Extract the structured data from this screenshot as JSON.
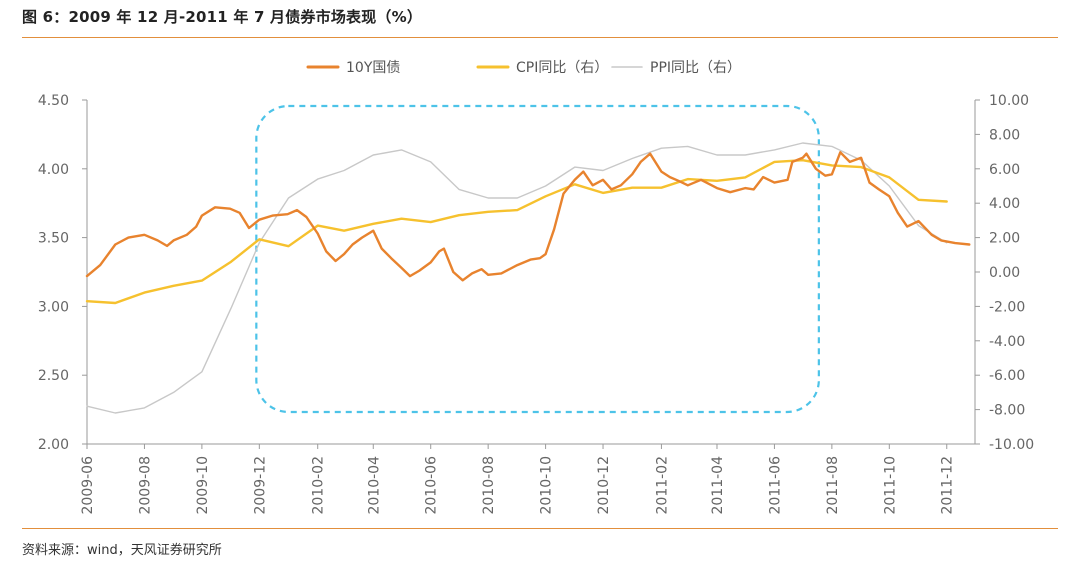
{
  "header": {
    "title": "图 6：2009 年 12 月-2011 年 7 月债券市场表现（%）"
  },
  "footer": {
    "source": "资料来源：wind，天风证券研究所"
  },
  "chart_data": {
    "type": "line",
    "title": "",
    "legend_position": "top-center",
    "grid": false,
    "x_ticks": [
      "2009-06",
      "2009-08",
      "2009-10",
      "2009-12",
      "2010-02",
      "2010-04",
      "2010-06",
      "2010-08",
      "2010-10",
      "2010-12",
      "2011-02",
      "2011-04",
      "2011-06",
      "2011-08",
      "2011-10",
      "2011-12"
    ],
    "x_range": [
      "2009-06-01",
      "2011-12-31"
    ],
    "left_axis": {
      "ylim": [
        2.0,
        4.5
      ],
      "ticks": [
        "2.00",
        "2.50",
        "3.00",
        "3.50",
        "4.00",
        "4.50"
      ]
    },
    "right_axis": {
      "ylim": [
        -10.0,
        10.0
      ],
      "ticks": [
        "-10.00",
        "-8.00",
        "-6.00",
        "-4.00",
        "-2.00",
        "0.00",
        "2.00",
        "4.00",
        "6.00",
        "8.00",
        "10.00"
      ]
    },
    "series": [
      {
        "name": "10Y国债",
        "axis": "left",
        "color": "#e8832e",
        "points": [
          [
            "2009-06-01",
            3.22
          ],
          [
            "2009-06-15",
            3.3
          ],
          [
            "2009-07-01",
            3.45
          ],
          [
            "2009-07-15",
            3.5
          ],
          [
            "2009-08-01",
            3.52
          ],
          [
            "2009-08-15",
            3.48
          ],
          [
            "2009-08-25",
            3.44
          ],
          [
            "2009-09-01",
            3.48
          ],
          [
            "2009-09-15",
            3.52
          ],
          [
            "2009-09-25",
            3.58
          ],
          [
            "2009-10-01",
            3.66
          ],
          [
            "2009-10-15",
            3.72
          ],
          [
            "2009-10-31",
            3.71
          ],
          [
            "2009-11-10",
            3.68
          ],
          [
            "2009-11-20",
            3.57
          ],
          [
            "2009-12-01",
            3.63
          ],
          [
            "2009-12-15",
            3.66
          ],
          [
            "2009-12-31",
            3.67
          ],
          [
            "2010-01-10",
            3.7
          ],
          [
            "2010-01-20",
            3.65
          ],
          [
            "2010-02-01",
            3.53
          ],
          [
            "2010-02-10",
            3.4
          ],
          [
            "2010-02-20",
            3.33
          ],
          [
            "2010-03-01",
            3.38
          ],
          [
            "2010-03-10",
            3.45
          ],
          [
            "2010-03-20",
            3.5
          ],
          [
            "2010-04-01",
            3.55
          ],
          [
            "2010-04-10",
            3.42
          ],
          [
            "2010-04-20",
            3.35
          ],
          [
            "2010-05-01",
            3.28
          ],
          [
            "2010-05-10",
            3.22
          ],
          [
            "2010-05-20",
            3.26
          ],
          [
            "2010-06-01",
            3.32
          ],
          [
            "2010-06-10",
            3.4
          ],
          [
            "2010-06-15",
            3.42
          ],
          [
            "2010-06-25",
            3.25
          ],
          [
            "2010-07-05",
            3.19
          ],
          [
            "2010-07-15",
            3.24
          ],
          [
            "2010-07-25",
            3.27
          ],
          [
            "2010-08-01",
            3.23
          ],
          [
            "2010-08-15",
            3.24
          ],
          [
            "2010-09-01",
            3.3
          ],
          [
            "2010-09-15",
            3.34
          ],
          [
            "2010-09-25",
            3.35
          ],
          [
            "2010-10-01",
            3.38
          ],
          [
            "2010-10-10",
            3.56
          ],
          [
            "2010-10-20",
            3.82
          ],
          [
            "2010-11-01",
            3.92
          ],
          [
            "2010-11-10",
            3.98
          ],
          [
            "2010-11-20",
            3.88
          ],
          [
            "2010-12-01",
            3.92
          ],
          [
            "2010-12-10",
            3.85
          ],
          [
            "2010-12-20",
            3.88
          ],
          [
            "2011-01-01",
            3.96
          ],
          [
            "2011-01-10",
            4.05
          ],
          [
            "2011-01-20",
            4.11
          ],
          [
            "2011-02-01",
            3.98
          ],
          [
            "2011-02-10",
            3.94
          ],
          [
            "2011-02-20",
            3.91
          ],
          [
            "2011-03-01",
            3.88
          ],
          [
            "2011-03-15",
            3.92
          ],
          [
            "2011-04-01",
            3.86
          ],
          [
            "2011-04-15",
            3.83
          ],
          [
            "2011-05-01",
            3.86
          ],
          [
            "2011-05-10",
            3.85
          ],
          [
            "2011-05-20",
            3.94
          ],
          [
            "2011-06-01",
            3.9
          ],
          [
            "2011-06-15",
            3.92
          ],
          [
            "2011-06-20",
            4.05
          ],
          [
            "2011-07-01",
            4.08
          ],
          [
            "2011-07-05",
            4.11
          ],
          [
            "2011-07-15",
            4.0
          ],
          [
            "2011-07-25",
            3.95
          ],
          [
            "2011-08-01",
            3.96
          ],
          [
            "2011-08-10",
            4.12
          ],
          [
            "2011-08-20",
            4.05
          ],
          [
            "2011-09-01",
            4.08
          ],
          [
            "2011-09-10",
            3.9
          ],
          [
            "2011-09-20",
            3.85
          ],
          [
            "2011-10-01",
            3.8
          ],
          [
            "2011-10-10",
            3.68
          ],
          [
            "2011-10-20",
            3.58
          ],
          [
            "2011-11-01",
            3.62
          ],
          [
            "2011-11-15",
            3.52
          ],
          [
            "2011-11-25",
            3.48
          ],
          [
            "2011-12-10",
            3.46
          ],
          [
            "2011-12-25",
            3.45
          ]
        ]
      },
      {
        "name": "CPI同比（右）",
        "axis": "right",
        "color": "#f6c12e",
        "points": [
          [
            "2009-06-01",
            -1.7
          ],
          [
            "2009-07-01",
            -1.8
          ],
          [
            "2009-08-01",
            -1.2
          ],
          [
            "2009-09-01",
            -0.8
          ],
          [
            "2009-10-01",
            -0.5
          ],
          [
            "2009-11-01",
            0.6
          ],
          [
            "2009-12-01",
            1.9
          ],
          [
            "2010-01-01",
            1.5
          ],
          [
            "2010-02-01",
            2.7
          ],
          [
            "2010-03-01",
            2.4
          ],
          [
            "2010-04-01",
            2.8
          ],
          [
            "2010-05-01",
            3.1
          ],
          [
            "2010-06-01",
            2.9
          ],
          [
            "2010-07-01",
            3.3
          ],
          [
            "2010-08-01",
            3.5
          ],
          [
            "2010-09-01",
            3.6
          ],
          [
            "2010-10-01",
            4.4
          ],
          [
            "2010-11-01",
            5.1
          ],
          [
            "2010-12-01",
            4.6
          ],
          [
            "2011-01-01",
            4.9
          ],
          [
            "2011-02-01",
            4.9
          ],
          [
            "2011-03-01",
            5.4
          ],
          [
            "2011-04-01",
            5.3
          ],
          [
            "2011-05-01",
            5.5
          ],
          [
            "2011-06-01",
            6.4
          ],
          [
            "2011-07-01",
            6.5
          ],
          [
            "2011-08-01",
            6.2
          ],
          [
            "2011-09-01",
            6.1
          ],
          [
            "2011-10-01",
            5.5
          ],
          [
            "2011-11-01",
            4.2
          ],
          [
            "2011-12-01",
            4.1
          ]
        ]
      },
      {
        "name": "PPI同比（右）",
        "axis": "right",
        "color": "#c8c8c8",
        "points": [
          [
            "2009-06-01",
            -7.8
          ],
          [
            "2009-07-01",
            -8.2
          ],
          [
            "2009-08-01",
            -7.9
          ],
          [
            "2009-09-01",
            -7.0
          ],
          [
            "2009-10-01",
            -5.8
          ],
          [
            "2009-11-01",
            -2.1
          ],
          [
            "2009-12-01",
            1.7
          ],
          [
            "2010-01-01",
            4.3
          ],
          [
            "2010-02-01",
            5.4
          ],
          [
            "2010-03-01",
            5.9
          ],
          [
            "2010-04-01",
            6.8
          ],
          [
            "2010-05-01",
            7.1
          ],
          [
            "2010-06-01",
            6.4
          ],
          [
            "2010-07-01",
            4.8
          ],
          [
            "2010-08-01",
            4.3
          ],
          [
            "2010-09-01",
            4.3
          ],
          [
            "2010-10-01",
            5.0
          ],
          [
            "2010-11-01",
            6.1
          ],
          [
            "2010-12-01",
            5.9
          ],
          [
            "2011-01-01",
            6.6
          ],
          [
            "2011-02-01",
            7.2
          ],
          [
            "2011-03-01",
            7.3
          ],
          [
            "2011-04-01",
            6.8
          ],
          [
            "2011-05-01",
            6.8
          ],
          [
            "2011-06-01",
            7.1
          ],
          [
            "2011-07-01",
            7.5
          ],
          [
            "2011-08-01",
            7.3
          ],
          [
            "2011-09-01",
            6.5
          ],
          [
            "2011-10-01",
            5.0
          ],
          [
            "2011-11-01",
            2.7
          ],
          [
            "2011-12-01",
            1.7
          ]
        ]
      }
    ],
    "annotations": [
      {
        "type": "dashed-box",
        "color": "#4dc3e8",
        "x_from": "2009-12-01",
        "x_to": "2011-07-15"
      }
    ]
  }
}
